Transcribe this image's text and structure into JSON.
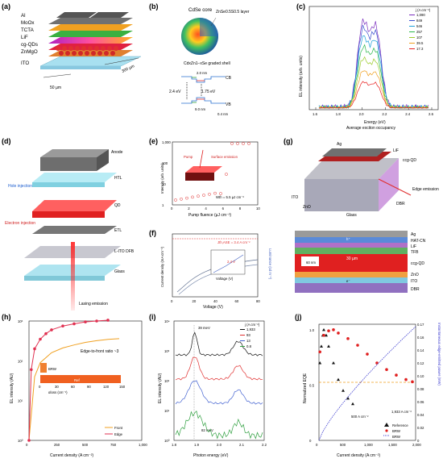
{
  "panels": {
    "a": {
      "letter": "(a)",
      "layers": [
        "Al",
        "MoOx",
        "TCTA",
        "LiF",
        "cg-QDs",
        "ZnMgO",
        "ITO"
      ],
      "dim1": "50 µm",
      "dim2": "300 µm"
    },
    "b": {
      "letter": "(b)",
      "core": "CdSe core",
      "layer": "ZnSe0.5S0.5 layer",
      "shell": "CdxZn1−xSe graded shell",
      "cb": "CB",
      "vb": "VB",
      "w1": "2.0 nm",
      "w2": "9.0 nm",
      "w3": "0.4 nm",
      "e1": "2.4 eV",
      "e2": "1.75 eV"
    },
    "c": {
      "letter": "(c)",
      "ylabel": "EL intensity (arb. units)",
      "xlabel": "Energy (eV)",
      "xlabel2": "Average exciton occupancy",
      "legend_title": "j (A cm⁻²)",
      "xticks": [
        "1.6",
        "1.8",
        "2.0",
        "2.2",
        "2.4",
        "2.6"
      ],
      "series": [
        {
          "name": "1,090",
          "color": "#7b2fbe",
          "scale": 1.0
        },
        {
          "name": "849",
          "color": "#3a4fd0",
          "scale": 0.92
        },
        {
          "name": "546",
          "color": "#1aa0d8",
          "scale": 0.82
        },
        {
          "name": "257",
          "color": "#29b84a",
          "scale": 0.7
        },
        {
          "name": "107",
          "color": "#9ccc2a",
          "scale": 0.57
        },
        {
          "name": "39.5",
          "color": "#f0a020",
          "scale": 0.43
        },
        {
          "name": "17.3",
          "color": "#e82020",
          "scale": 0.3
        }
      ]
    },
    "d": {
      "letter": "(d)",
      "anode": "Anode",
      "htl": "HTL",
      "qd": "QD",
      "etl": "ETL",
      "dfb": "L-ITO DFB",
      "glass": "Glass",
      "hole": "Hole injection",
      "electron": "Electron injection",
      "lasing": "Lasing emission"
    },
    "e": {
      "letter": "(e)",
      "ylabel": "Intensity (arb. units)",
      "xlabel": "Pump fluence (µJ cm⁻²)",
      "xticks": [
        "0",
        "2",
        "4",
        "6",
        "8",
        "10"
      ],
      "yticks": [
        "1",
        "10",
        "100",
        "1,000"
      ],
      "surface": "Surface emission",
      "pump": "Pump",
      "wth": "Wth = 5.5 µJ cm⁻²"
    },
    "f": {
      "letter": "(f)",
      "ylabel": "Current density (mA cm⁻²)",
      "y2label": "Luminance (cd m⁻²)",
      "xlabel": "Voltage (V)",
      "xticks": [
        "0",
        "20",
        "40",
        "60",
        "80"
      ],
      "annotation": "Jth,ASE = 3.4 A cm⁻²",
      "inset_x": "Voltage (V)",
      "inset_v": "2.4 V"
    },
    "g": {
      "letter": "(g)",
      "top": [
        "Ag",
        "LiF",
        "ccg-QD",
        "ITO",
        "ZnO",
        "Glass",
        "DBR"
      ],
      "edge": "Edge emission",
      "stack": [
        "Ag",
        "HAT-CN",
        "LiF",
        "TFB",
        "ccg-QD",
        "ZnO",
        "ITO",
        "DBR"
      ],
      "dim_30": "30 µm",
      "dim_60": "60 nm",
      "h": "h⁺",
      "e": "e⁻"
    },
    "h": {
      "letter": "(h)",
      "ylabel": "EL intensity (AU)",
      "xlabel": "Current density (A cm⁻²)",
      "xticks": [
        "0",
        "250",
        "500",
        "750",
        "1,000"
      ],
      "yticks": [
        "10⁰",
        "10¹",
        "10²",
        "10³"
      ],
      "ratio": "Edge-to-front ratio ~3",
      "brw": "BRW",
      "ref": "Ref",
      "inset_xlabel": "αloss (cm⁻¹)",
      "inset_xticks": [
        "0",
        "30",
        "60",
        "90",
        "120",
        "150"
      ],
      "legend": [
        "Front",
        "Edge"
      ]
    },
    "i": {
      "letter": "(i)",
      "ylabel": "EL intensity (AU)",
      "xlabel": "Photon energy (eV)",
      "xticks": [
        "1.8",
        "1.9",
        "2.0",
        "2.1",
        "2.2"
      ],
      "yticks": [
        "10⁰",
        "10¹",
        "10²",
        "10³",
        "10⁴"
      ],
      "legend_title": "j (A cm⁻²)",
      "series": [
        "1,933",
        "93",
        "13",
        "0.8"
      ],
      "w39": "39 meV",
      "w82": "82 meV"
    },
    "j": {
      "letter": "(j)",
      "ylabel": "Normalized EQE",
      "y2label": "Instantaneous edge-emitted power (mW)",
      "xlabel": "Current density (A cm⁻²)",
      "xticks": [
        "0",
        "500",
        "1,000",
        "1,500",
        "2,000"
      ],
      "yticks": [
        "0",
        "0.5",
        "1.0"
      ],
      "y2ticks": [
        "0",
        "0.02",
        "0.04",
        "0.06",
        "0.08",
        "0.10",
        "0.12",
        "0.14",
        "0.16",
        "0.17"
      ],
      "annot1": "500 A cm⁻²",
      "annot2": "1,933 A cm⁻²",
      "legend": [
        "Reference",
        "BRW",
        "BRW"
      ]
    }
  },
  "chart_data": [
    {
      "type": "line",
      "panel": "h",
      "xlabel": "Current density (A cm⁻²)",
      "ylabel": "EL intensity (AU)",
      "xlim": [
        0,
        1000
      ],
      "ylim_log": [
        0,
        3
      ],
      "series": [
        {
          "name": "Front",
          "x": [
            0,
            50,
            100,
            200,
            300,
            400,
            500,
            600,
            700,
            800
          ],
          "values": [
            1,
            40,
            90,
            160,
            210,
            250,
            290,
            320,
            345,
            360
          ]
        },
        {
          "name": "Edge",
          "x": [
            0,
            20,
            50,
            100,
            150,
            200,
            300,
            400,
            500,
            600,
            700
          ],
          "values": [
            1,
            60,
            200,
            350,
            480,
            600,
            750,
            850,
            950,
            1000,
            1050
          ]
        }
      ]
    },
    {
      "type": "scatter",
      "panel": "j",
      "xlabel": "Current density (A cm⁻²)",
      "ylabel": "Normalized EQE",
      "xlim": [
        0,
        2000
      ],
      "ylim": [
        0,
        1.05
      ],
      "series": [
        {
          "name": "Reference",
          "x": [
            20,
            50,
            80,
            100,
            150,
            200,
            300,
            400,
            500,
            600,
            700
          ],
          "values": [
            0.7,
            0.85,
            0.95,
            1.0,
            0.95,
            0.85,
            0.7,
            0.55,
            0.45,
            0.38,
            0.33
          ]
        },
        {
          "name": "BRW",
          "x": [
            20,
            100,
            200,
            300,
            400,
            600,
            800,
            1000,
            1200,
            1400,
            1600,
            1800,
            1933
          ],
          "values": [
            0.8,
            0.95,
            0.99,
            1.0,
            0.97,
            0.92,
            0.86,
            0.78,
            0.7,
            0.64,
            0.59,
            0.55,
            0.53
          ]
        }
      ]
    }
  ]
}
